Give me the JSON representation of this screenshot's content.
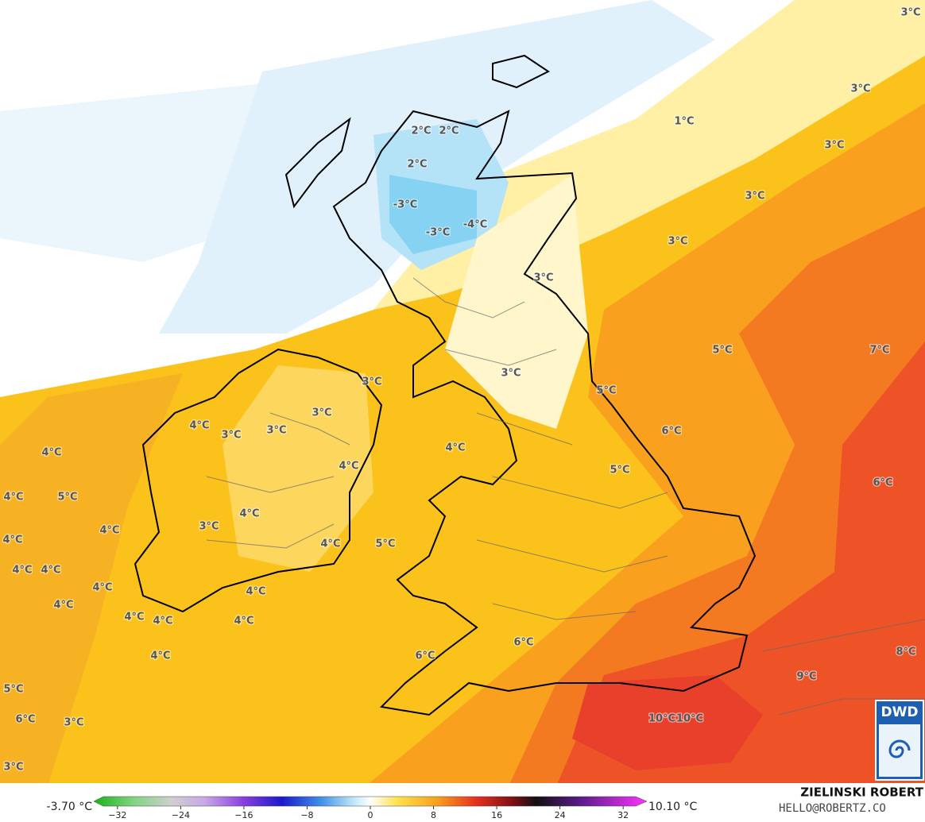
{
  "map": {
    "labels": [
      "3°C",
      "3°C",
      "1°C",
      "3°C",
      "2°C",
      "2°C",
      "2°C",
      "3°C",
      "-3°C",
      "-4°C",
      "-3°C",
      "3°C",
      "3°C",
      "5°C",
      "7°C",
      "3°C",
      "3°C",
      "5°C",
      "3°C",
      "4°C",
      "3°C",
      "3°C",
      "6°C",
      "4°C",
      "4°C",
      "4°C",
      "5°C",
      "6°C",
      "4°C",
      "5°C",
      "4°C",
      "4°C",
      "3°C",
      "4°C",
      "4°C",
      "5°C",
      "4°C",
      "4°C",
      "4°C",
      "4°C",
      "4°C",
      "4°C",
      "4°C",
      "4°C",
      "6°C",
      "4°C",
      "6°C",
      "8°C",
      "9°C",
      "5°C",
      "6°C",
      "3°C",
      "10°C",
      "10°C",
      "3°C"
    ]
  },
  "colorbar": {
    "min_label": "-3.70 °C",
    "max_label": "10.10 °C",
    "lim": [
      -35,
      35
    ],
    "ticks": [
      {
        "value": -32,
        "label": "−32"
      },
      {
        "value": -24,
        "label": "−24"
      },
      {
        "value": -16,
        "label": "−16"
      },
      {
        "value": -8,
        "label": "−8"
      },
      0,
      8,
      16,
      24,
      32
    ]
  },
  "credit": {
    "name": "ZIELINSKI ROBERT",
    "email": "HELLO@ROBERTZ.CO"
  },
  "logo": "DWD"
}
